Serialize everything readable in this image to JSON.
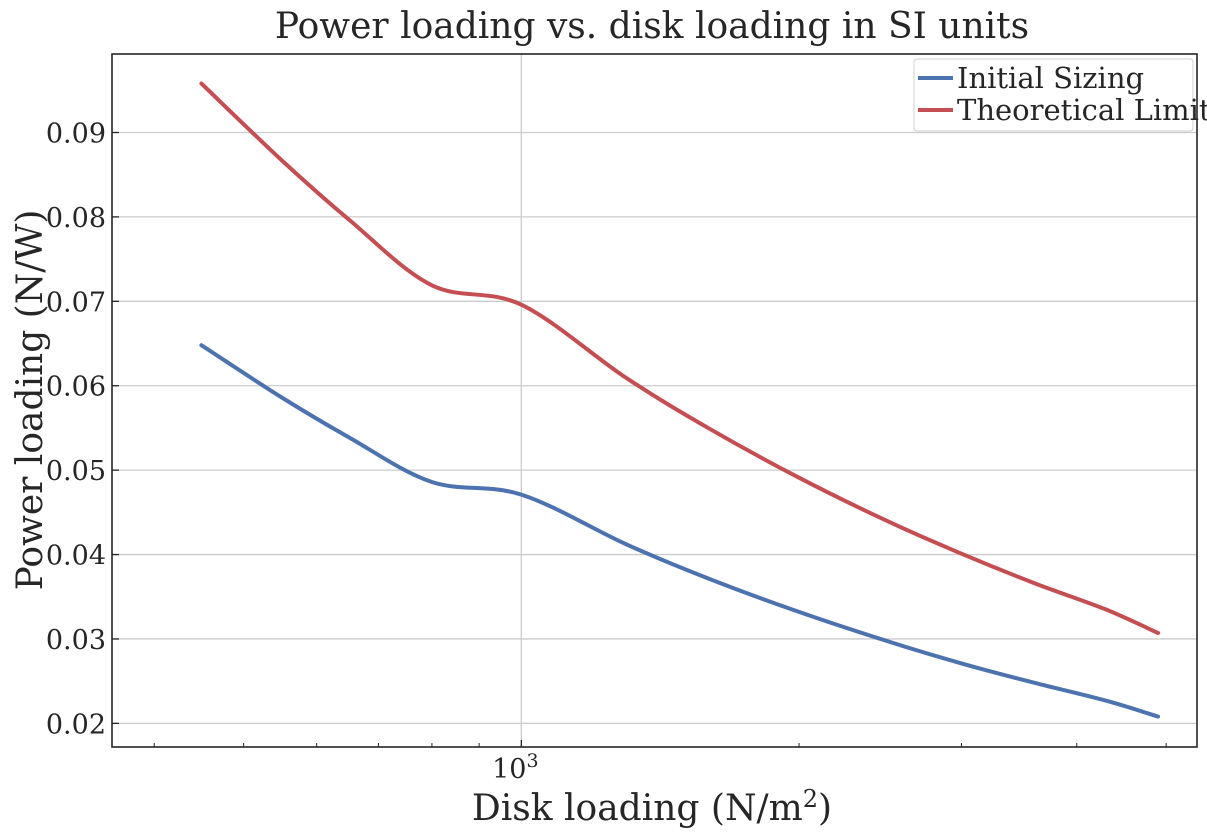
{
  "chart_data": {
    "type": "line",
    "title": "Power loading vs. disk loading in SI units",
    "xlabel": "Disk loading (N/m",
    "xlabel_sup": "2",
    "xlabel_end": ")",
    "ylabel": "Power loading (N/W)",
    "xscale": "log",
    "xlim": [
      360,
      5400
    ],
    "ylim": [
      0.0172,
      0.0993
    ],
    "x_major_ticks": [
      {
        "value": 1000,
        "base": "10",
        "exp": "3"
      }
    ],
    "x_minor_ticks": [
      400,
      500,
      600,
      700,
      800,
      900,
      2000,
      3000,
      4000,
      5000
    ],
    "y_ticks": [
      0.02,
      0.03,
      0.04,
      0.05,
      0.06,
      0.07,
      0.08,
      0.09
    ],
    "y_tick_labels": [
      "0.02",
      "0.03",
      "0.04",
      "0.05",
      "0.06",
      "0.07",
      "0.08",
      "0.09"
    ],
    "grid": true,
    "legend_position": "top-right",
    "series": [
      {
        "name": "Initial Sizing",
        "color": "#4c72b0",
        "x": [
          450,
          550,
          650,
          800,
          1000,
          1300,
          1600,
          2000,
          2500,
          3000,
          3600,
          4300,
          4900
        ],
        "y": [
          0.0648,
          0.0586,
          0.0539,
          0.0486,
          0.0471,
          0.0412,
          0.0371,
          0.0332,
          0.0297,
          0.0271,
          0.0248,
          0.0227,
          0.0208
        ]
      },
      {
        "name": "Theoretical Limit",
        "color": "#c44e52",
        "x": [
          450,
          550,
          650,
          800,
          1000,
          1300,
          1600,
          2000,
          2500,
          3000,
          3600,
          4300,
          4900
        ],
        "y": [
          0.0958,
          0.0867,
          0.0797,
          0.0719,
          0.0696,
          0.0609,
          0.0549,
          0.0491,
          0.0439,
          0.0401,
          0.0366,
          0.0335,
          0.0307
        ]
      }
    ]
  }
}
